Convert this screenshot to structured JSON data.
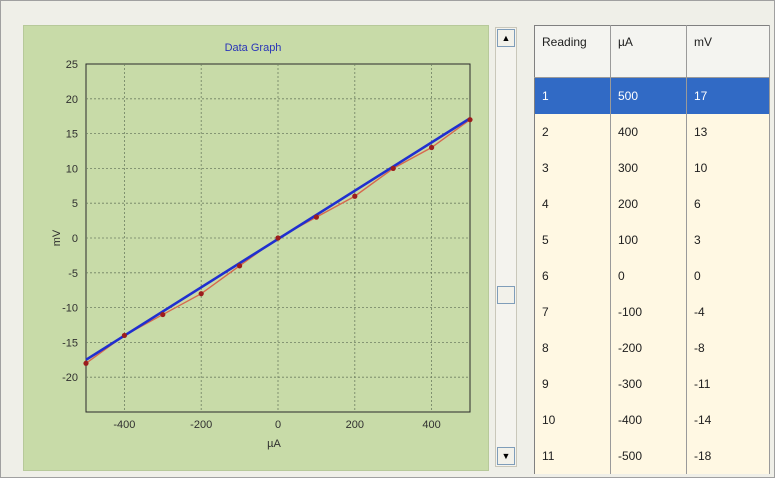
{
  "graph": {
    "chart_data": {
      "type": "line",
      "title": "Data Graph",
      "xlabel": "µA",
      "ylabel": "mV",
      "xlim": [
        -500,
        500
      ],
      "ylim": [
        -25,
        25
      ],
      "x_ticks": [
        -400,
        -200,
        0,
        200,
        400
      ],
      "x_tick_labels": [
        "-400",
        "-200",
        "0",
        "200",
        "400"
      ],
      "y_ticks": [
        25,
        20,
        15,
        10,
        5,
        0,
        -5,
        -10,
        -15,
        -20
      ],
      "y_tick_labels": [
        "25",
        "20",
        "15",
        "10",
        "5",
        "0",
        "-5",
        "-10",
        "-15",
        "-20"
      ],
      "grid": true,
      "series": [
        {
          "color": "#d6694d",
          "marker_color": "#9c1d1d",
          "x": [
            500,
            400,
            300,
            200,
            100,
            0,
            -100,
            -200,
            -300,
            -400,
            -500
          ],
          "y": [
            17,
            13,
            10,
            6,
            3,
            0,
            -4,
            -8,
            -11,
            -14,
            -18
          ]
        },
        {
          "color": "#1f2fd0",
          "x": [
            -500,
            500
          ],
          "y": [
            -17.5,
            17.2
          ]
        }
      ]
    }
  },
  "scrollbar": {
    "up_icon": "▲",
    "down_icon": "▼"
  },
  "table": {
    "headers": [
      "Reading",
      "µA",
      "mV"
    ],
    "rows": [
      [
        "1",
        "500",
        "17"
      ],
      [
        "2",
        "400",
        "13"
      ],
      [
        "3",
        "300",
        "10"
      ],
      [
        "4",
        "200",
        "6"
      ],
      [
        "5",
        "100",
        "3"
      ],
      [
        "6",
        "0",
        "0"
      ],
      [
        "7",
        "-100",
        "-4"
      ],
      [
        "8",
        "-200",
        "-8"
      ],
      [
        "9",
        "-300",
        "-11"
      ],
      [
        "10",
        "-400",
        "-14"
      ],
      [
        "11",
        "-500",
        "-18"
      ]
    ],
    "selected_row": 0,
    "selected_color": "#316ac5"
  }
}
